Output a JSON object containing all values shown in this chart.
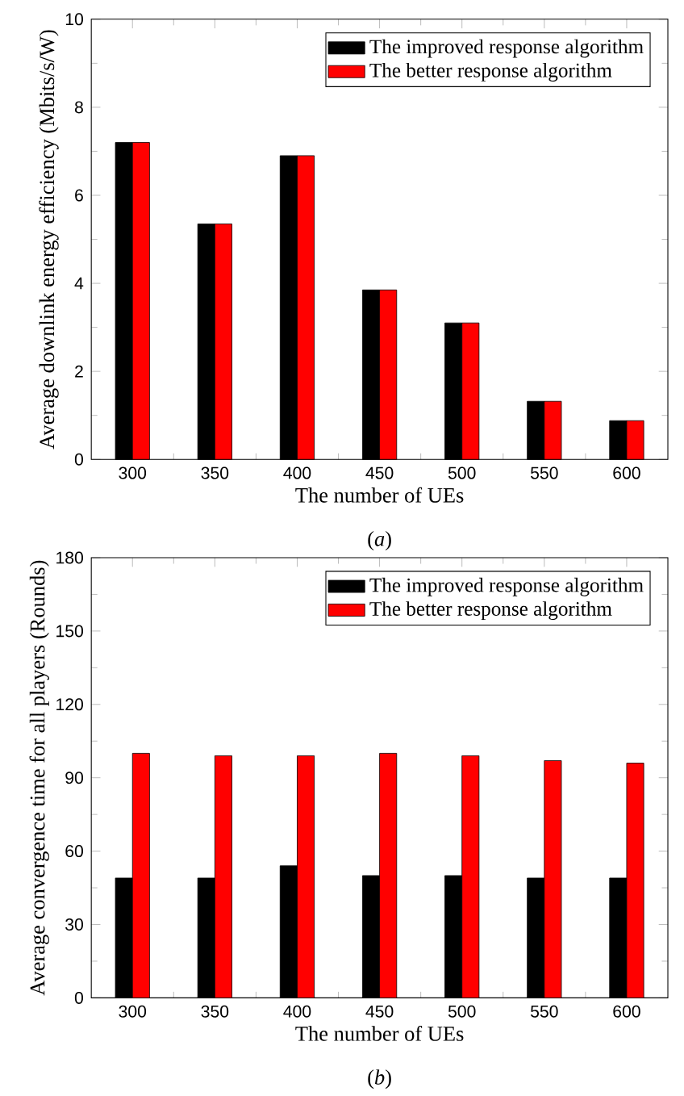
{
  "chart_data": [
    {
      "type": "bar",
      "xlabel": "The number of UEs",
      "ylabel": "Average downlink energy efficiency (Mbits/s/W)",
      "categories": [
        "300",
        "350",
        "400",
        "450",
        "500",
        "550",
        "600"
      ],
      "series": [
        {
          "name": "The improved response algorithm",
          "color": "#000000",
          "values": [
            7.2,
            5.35,
            6.9,
            3.85,
            3.1,
            1.32,
            0.88
          ]
        },
        {
          "name": "The better response algorithm",
          "color": "#ff0000",
          "values": [
            7.2,
            5.35,
            6.9,
            3.85,
            3.1,
            1.32,
            0.88
          ]
        }
      ],
      "ylim": [
        0,
        10
      ],
      "yticks": [
        0,
        2,
        4,
        6,
        8,
        10
      ],
      "legend": "top right",
      "annotations": [
        "(*a*)"
      ]
    },
    {
      "type": "bar",
      "xlabel": "The number of UEs",
      "ylabel": "Average convergence time for all players (Rounds)",
      "categories": [
        "300",
        "350",
        "400",
        "450",
        "500",
        "550",
        "600"
      ],
      "series": [
        {
          "name": "The improved response algorithm",
          "color": "#000000",
          "values": [
            49,
            49,
            54,
            50,
            50,
            49,
            49
          ]
        },
        {
          "name": "The better response algorithm",
          "color": "#ff0000",
          "values": [
            100,
            99,
            99,
            100,
            99,
            97,
            96
          ]
        }
      ],
      "ylim": [
        0,
        180
      ],
      "yticks": [
        0,
        30,
        60,
        90,
        120,
        150,
        180
      ],
      "legend": "top right",
      "annotations": [
        "(*b*)"
      ]
    }
  ]
}
